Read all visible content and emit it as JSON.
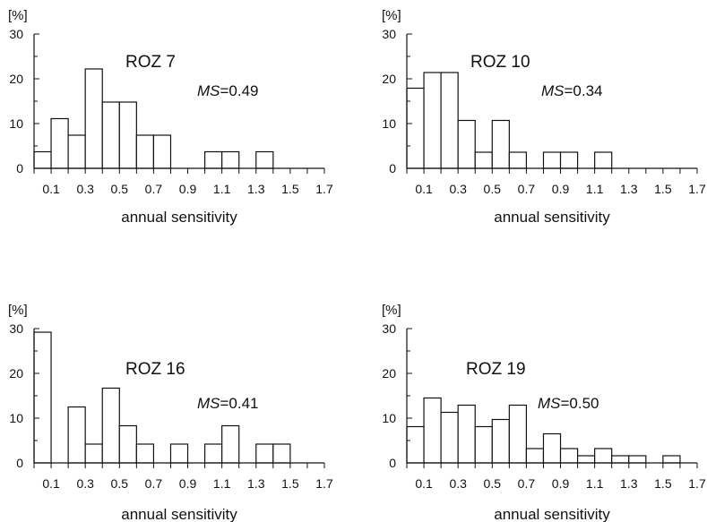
{
  "page": {
    "width": 789,
    "height": 583,
    "background": "#ffffff",
    "ink": "#111111"
  },
  "chart_data": [
    {
      "type": "bar",
      "title": "ROZ 7",
      "ms_label": "MS",
      "ms_value": "=0.49",
      "ylabel": "[%]",
      "xlabel": "annual sensitivity",
      "ylim": [
        0,
        30
      ],
      "yticks": [
        "0",
        "10",
        "20",
        "30"
      ],
      "xticks": [
        "0.1",
        "0.3",
        "0.5",
        "0.7",
        "0.9",
        "1.1",
        "1.3",
        "1.5",
        "1.7"
      ],
      "bin_start": 0.0,
      "bin_width": 0.1,
      "values": [
        3.7,
        11.1,
        7.4,
        22.2,
        14.8,
        14.8,
        7.4,
        7.4,
        0,
        0,
        3.7,
        3.7,
        0,
        3.7,
        0,
        0,
        0
      ]
    },
    {
      "type": "bar",
      "title": "ROZ 10",
      "ms_label": "MS",
      "ms_value": "=0.34",
      "ylabel": "[%]",
      "xlabel": "annual sensitivity",
      "ylim": [
        0,
        30
      ],
      "yticks": [
        "0",
        "10",
        "20",
        "30"
      ],
      "xticks": [
        "0.1",
        "0.3",
        "0.5",
        "0.7",
        "0.9",
        "1.1",
        "1.3",
        "1.5",
        "1.7"
      ],
      "bin_start": 0.0,
      "bin_width": 0.1,
      "values": [
        17.9,
        21.4,
        21.4,
        10.7,
        3.6,
        10.7,
        3.6,
        0,
        3.6,
        3.6,
        0,
        3.6,
        0,
        0,
        0,
        0,
        0
      ]
    },
    {
      "type": "bar",
      "title": "ROZ 16",
      "ms_label": "MS",
      "ms_value": "=0.41",
      "ylabel": "[%]",
      "xlabel": "annual sensitivity",
      "ylim": [
        0,
        30
      ],
      "yticks": [
        "0",
        "10",
        "20",
        "30"
      ],
      "xticks": [
        "0.1",
        "0.3",
        "0.5",
        "0.7",
        "0.9",
        "1.1",
        "1.3",
        "1.5",
        "1.7"
      ],
      "bin_start": 0.0,
      "bin_width": 0.1,
      "values": [
        29.2,
        0,
        12.5,
        4.2,
        16.7,
        8.3,
        4.2,
        0,
        4.2,
        0,
        4.2,
        8.3,
        0,
        4.2,
        4.2,
        0,
        0
      ]
    },
    {
      "type": "bar",
      "title": "ROZ 19",
      "ms_label": "MS",
      "ms_value": "=0.50",
      "ylabel": "[%]",
      "xlabel": "annual sensitivity",
      "ylim": [
        0,
        30
      ],
      "yticks": [
        "0",
        "10",
        "20",
        "30"
      ],
      "xticks": [
        "0.1",
        "0.3",
        "0.5",
        "0.7",
        "0.9",
        "1.1",
        "1.3",
        "1.5",
        "1.7"
      ],
      "bin_start": 0.0,
      "bin_width": 0.1,
      "values": [
        8.1,
        14.5,
        11.3,
        12.9,
        8.1,
        9.7,
        12.9,
        3.2,
        6.5,
        3.2,
        1.6,
        3.2,
        1.6,
        1.6,
        0,
        1.6,
        0
      ]
    }
  ]
}
